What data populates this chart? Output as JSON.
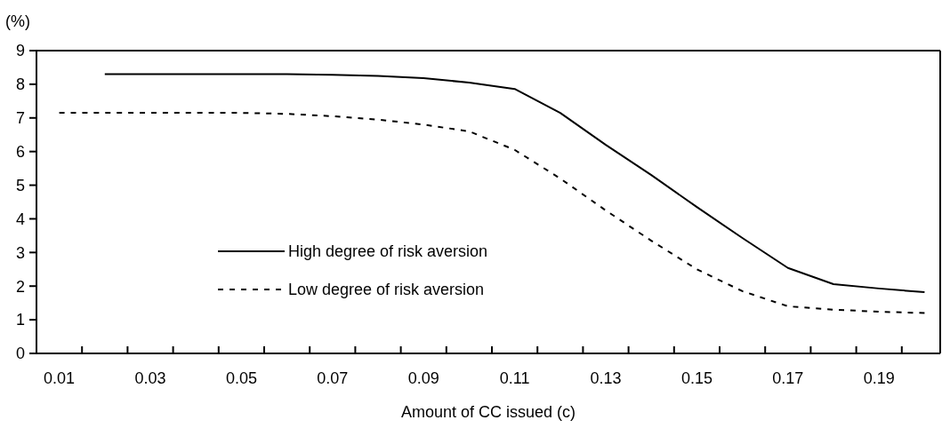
{
  "chart_data": {
    "type": "line",
    "xlabel": "Amount of CC issued (c)",
    "ylabel": "(%)",
    "categories": [
      "0.01",
      null,
      "0.03",
      null,
      "0.05",
      null,
      "0.07",
      null,
      "0.09",
      null,
      "0.11",
      null,
      "0.13",
      null,
      "0.15",
      null,
      "0.17",
      null,
      "0.19",
      null
    ],
    "series": [
      {
        "name": "High degree of risk aversion",
        "color": "#000000",
        "line_style": "solid",
        "values": [
          null,
          8.3,
          8.3,
          8.3,
          8.3,
          8.3,
          8.28,
          8.25,
          8.18,
          8.05,
          7.86,
          7.15,
          6.2,
          5.3,
          4.35,
          3.43,
          2.54,
          2.06,
          1.93,
          1.82
        ]
      },
      {
        "name": "Low degree of risk aversion",
        "color": "#000000",
        "line_style": "dashed",
        "values": [
          7.15,
          7.15,
          7.15,
          7.15,
          7.15,
          7.12,
          7.05,
          6.95,
          6.8,
          6.6,
          6.05,
          5.2,
          4.25,
          3.35,
          2.5,
          1.85,
          1.4,
          1.3,
          1.24,
          1.2
        ]
      }
    ],
    "ylim": [
      0,
      9
    ],
    "yticks": [
      0,
      1,
      2,
      3,
      4,
      5,
      6,
      7,
      8,
      9
    ],
    "grid": false,
    "legend": "bottom left"
  }
}
